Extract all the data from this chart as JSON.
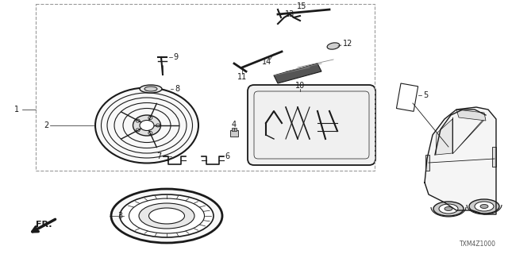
{
  "diagram_code": "TXM4Z1000",
  "bg_color": "#ffffff",
  "line_color": "#1a1a1a",
  "dashed_color": "#999999"
}
